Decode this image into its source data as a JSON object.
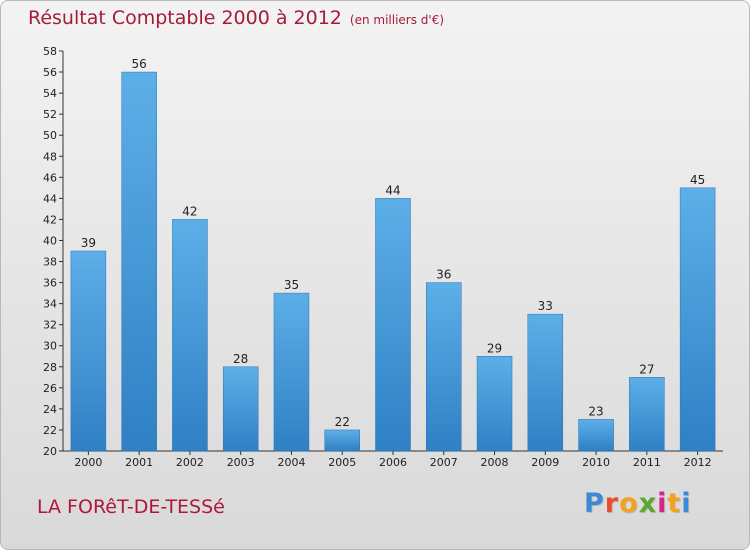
{
  "header": {
    "title": "Résultat Comptable 2000 à 2012",
    "subtitle": "(en milliers d'€)"
  },
  "footer": {
    "commune": "LA FORêT-DE-TESSé",
    "logo": "Proxiti",
    "logo_colors": [
      "#3a8ad8",
      "#e84e2c",
      "#f2a21b",
      "#5aa832",
      "#d8228c",
      "#f2a21b",
      "#3a8ad8"
    ]
  },
  "colors": {
    "bar_light": "#5dafe8",
    "bar_dark": "#2f80c4",
    "axis": "#333333"
  },
  "chart_data": {
    "type": "bar",
    "title": "Résultat Comptable 2000 à 2012",
    "subtitle": "(en milliers d'€)",
    "categories": [
      "2000",
      "2001",
      "2002",
      "2003",
      "2004",
      "2005",
      "2006",
      "2007",
      "2008",
      "2009",
      "2010",
      "2011",
      "2012"
    ],
    "values": [
      39,
      56,
      42,
      28,
      35,
      22,
      44,
      36,
      29,
      33,
      23,
      27,
      45
    ],
    "ylim": [
      20,
      58
    ],
    "ytick_step": 2,
    "grid": false,
    "data_labels": true
  }
}
